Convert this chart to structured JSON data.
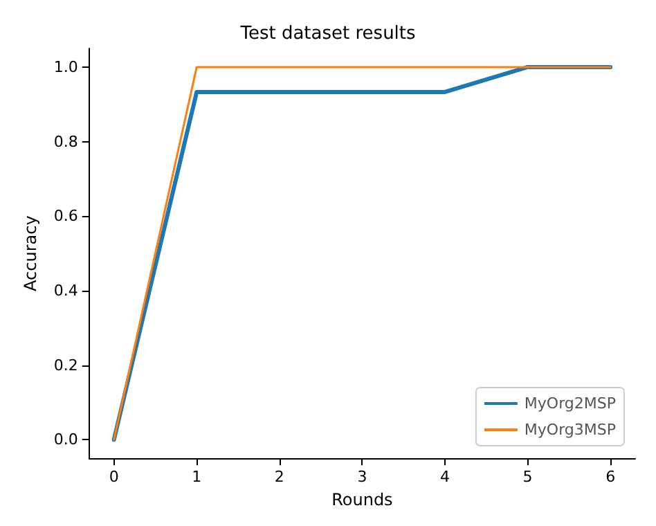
{
  "chart_data": {
    "type": "line",
    "title": "Test dataset results",
    "xlabel": "Rounds",
    "ylabel": "Accuracy",
    "x": [
      0,
      1,
      2,
      3,
      4,
      5,
      6
    ],
    "series": [
      {
        "name": "MyOrg2MSP",
        "color": "#1f77b4",
        "values": [
          0,
          0.933,
          0.933,
          0.933,
          0.933,
          1,
          1
        ]
      },
      {
        "name": "MyOrg3MSP",
        "color": "#ff7f0e",
        "values": [
          0,
          1,
          1,
          1,
          1,
          1,
          1
        ]
      }
    ],
    "xlim": [
      -0.3,
      6.3
    ],
    "xticks": [
      0,
      1,
      2,
      3,
      4,
      5,
      6
    ],
    "ylim": [
      -0.05,
      1.05
    ],
    "yticks": [
      {
        "value": 0,
        "label": "0.0"
      },
      {
        "value": 0.2,
        "label": "0.2"
      },
      {
        "value": 0.4,
        "label": "0.4"
      },
      {
        "value": 0.6,
        "label": "0.6"
      },
      {
        "value": 0.8,
        "label": "0.8"
      },
      {
        "value": 1,
        "label": "1.0"
      }
    ],
    "grid": false,
    "legend": "bottom right",
    "marker": "none",
    "line_style": "solid"
  }
}
